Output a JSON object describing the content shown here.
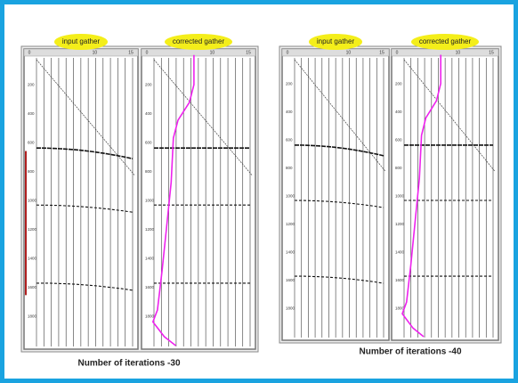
{
  "panels": [
    {
      "input_label": "input gather",
      "corrected_label": "corrected gather",
      "caption": "Number of iterations -30",
      "top_ticks": [
        "0",
        "10",
        "15"
      ],
      "depth_ticks": [
        "200",
        "400",
        "600",
        "800",
        "1000",
        "1200",
        "1400",
        "1600",
        "1800"
      ]
    },
    {
      "input_label": "input gather",
      "corrected_label": "corrected gather",
      "caption": "Number of iterations -40",
      "top_ticks": [
        "0",
        "10",
        "15"
      ],
      "depth_ticks": [
        "200",
        "400",
        "600",
        "800",
        "1000",
        "1200",
        "1400",
        "1600",
        "1800"
      ]
    }
  ]
}
